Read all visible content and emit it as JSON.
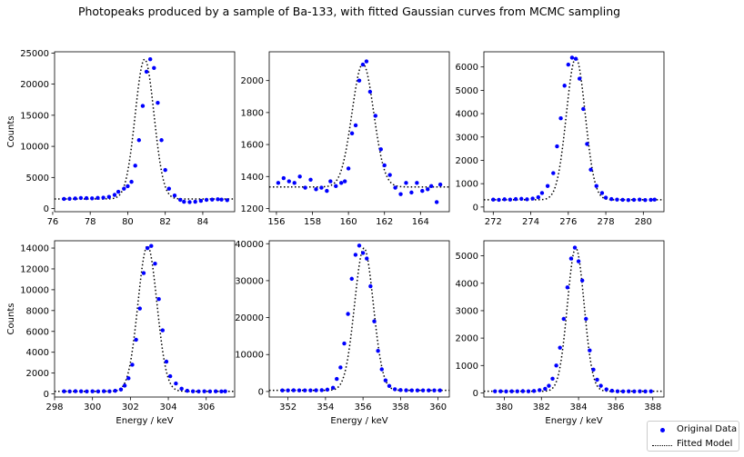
{
  "figure": {
    "title": "Photopeaks produced by a sample of Ba-133, with fitted Gaussian curves from MCMC sampling",
    "colors": {
      "data": "#0000ff",
      "model": "#000000",
      "axis": "#000000"
    },
    "legend": {
      "placement": "bottom-right",
      "entries": [
        {
          "label": "Original Data",
          "style": "blue-dots"
        },
        {
          "label": "Fitted Model",
          "style": "black-dotted-line"
        }
      ]
    }
  },
  "chart_data": [
    {
      "type": "scatter",
      "ylabel": "Counts",
      "xlabel": "",
      "xlim": [
        76.1,
        85.7
      ],
      "ylim": [
        -500,
        25200
      ],
      "xticks": [
        76,
        78,
        80,
        82,
        84
      ],
      "yticks": [
        0,
        5000,
        10000,
        15000,
        20000,
        25000
      ],
      "series": [
        {
          "name": "Original Data",
          "x": [
            76.6,
            76.9,
            77.2,
            77.5,
            77.8,
            78.1,
            78.4,
            78.7,
            79.0,
            79.3,
            79.5,
            79.8,
            80.0,
            80.2,
            80.4,
            80.6,
            80.8,
            81.0,
            81.2,
            81.4,
            81.6,
            81.8,
            82.0,
            82.2,
            82.5,
            82.8,
            83.0,
            83.3,
            83.6,
            83.9,
            84.2,
            84.5,
            84.8,
            85.0,
            85.3
          ],
          "y": [
            1550,
            1580,
            1620,
            1700,
            1680,
            1650,
            1720,
            1760,
            1880,
            2200,
            2700,
            3200,
            3600,
            4300,
            6900,
            11000,
            16500,
            22000,
            24000,
            22600,
            17000,
            11000,
            6200,
            3200,
            2100,
            1400,
            1100,
            1050,
            1100,
            1250,
            1400,
            1450,
            1500,
            1450,
            1350
          ]
        },
        {
          "name": "Fitted Model",
          "line": "dotted",
          "gaussian": {
            "amplitude": 22450,
            "center": 80.9,
            "sigma": 0.5,
            "baseline": 1550
          }
        }
      ]
    },
    {
      "type": "scatter",
      "ylabel": "",
      "xlabel": "",
      "xlim": [
        155.6,
        165.6
      ],
      "ylim": [
        1180,
        2180
      ],
      "xticks": [
        156,
        158,
        160,
        162,
        164
      ],
      "yticks": [
        1200,
        1400,
        1600,
        1800,
        2000
      ],
      "series": [
        {
          "name": "Original Data",
          "x": [
            156.1,
            156.4,
            156.7,
            157.0,
            157.3,
            157.6,
            157.9,
            158.2,
            158.5,
            158.8,
            159.0,
            159.3,
            159.6,
            159.8,
            160.0,
            160.2,
            160.4,
            160.6,
            160.8,
            161.0,
            161.2,
            161.5,
            161.8,
            162.0,
            162.3,
            162.6,
            162.9,
            163.2,
            163.5,
            163.8,
            164.1,
            164.4,
            164.6,
            164.9,
            165.1
          ],
          "y": [
            1360,
            1390,
            1370,
            1360,
            1400,
            1330,
            1380,
            1320,
            1330,
            1310,
            1370,
            1340,
            1360,
            1370,
            1450,
            1670,
            1720,
            2000,
            2100,
            2120,
            1930,
            1780,
            1570,
            1470,
            1410,
            1330,
            1290,
            1360,
            1300,
            1360,
            1310,
            1320,
            1340,
            1240,
            1350
          ]
        },
        {
          "name": "Fitted Model",
          "line": "dotted",
          "gaussian": {
            "amplitude": 770,
            "center": 160.8,
            "sigma": 0.6,
            "baseline": 1335
          }
        }
      ]
    },
    {
      "type": "scatter",
      "ylabel": "",
      "xlabel": "",
      "xlim": [
        271.5,
        281.1
      ],
      "ylim": [
        -200,
        6650
      ],
      "xticks": [
        272,
        274,
        276,
        278,
        280
      ],
      "yticks": [
        0,
        1000,
        2000,
        3000,
        4000,
        5000,
        6000
      ],
      "series": [
        {
          "name": "Original Data",
          "x": [
            272.0,
            272.3,
            272.6,
            272.9,
            273.2,
            273.5,
            273.8,
            274.1,
            274.4,
            274.6,
            274.9,
            275.2,
            275.4,
            275.6,
            275.8,
            276.0,
            276.2,
            276.4,
            276.6,
            276.8,
            277.0,
            277.2,
            277.5,
            277.8,
            278.0,
            278.3,
            278.6,
            278.9,
            279.2,
            279.5,
            279.8,
            280.1,
            280.4,
            280.6
          ],
          "y": [
            320,
            310,
            330,
            320,
            340,
            350,
            330,
            360,
            420,
            600,
            900,
            1450,
            2600,
            3800,
            5200,
            6100,
            6400,
            6350,
            5500,
            4200,
            2700,
            1600,
            900,
            600,
            400,
            340,
            320,
            310,
            300,
            310,
            320,
            300,
            310,
            320
          ]
        },
        {
          "name": "Fitted Model",
          "line": "dotted",
          "gaussian": {
            "amplitude": 6080,
            "center": 276.4,
            "sigma": 0.5,
            "baseline": 310
          }
        }
      ]
    },
    {
      "type": "scatter",
      "ylabel": "Counts",
      "xlabel": "Energy / keV",
      "xlim": [
        298.0,
        307.5
      ],
      "ylim": [
        -300,
        14700
      ],
      "xticks": [
        298,
        300,
        302,
        304,
        306
      ],
      "yticks": [
        0,
        2000,
        4000,
        6000,
        8000,
        10000,
        12000,
        14000
      ],
      "series": [
        {
          "name": "Original Data",
          "x": [
            298.5,
            298.8,
            299.1,
            299.4,
            299.7,
            300.0,
            300.3,
            300.6,
            300.9,
            301.2,
            301.5,
            301.7,
            301.9,
            302.1,
            302.3,
            302.5,
            302.7,
            302.9,
            303.1,
            303.3,
            303.5,
            303.7,
            303.9,
            304.1,
            304.4,
            304.7,
            305.0,
            305.3,
            305.6,
            305.9,
            306.2,
            306.5,
            306.8,
            307.0
          ],
          "y": [
            250,
            240,
            260,
            250,
            240,
            250,
            240,
            260,
            250,
            300,
            420,
            800,
            1500,
            2800,
            5200,
            8200,
            11600,
            14000,
            14200,
            12500,
            9100,
            6100,
            3100,
            1700,
            1000,
            500,
            300,
            250,
            240,
            250,
            240,
            250,
            240,
            250
          ]
        },
        {
          "name": "Fitted Model",
          "line": "dotted",
          "gaussian": {
            "amplitude": 13950,
            "center": 302.9,
            "sigma": 0.5,
            "baseline": 250
          }
        }
      ]
    },
    {
      "type": "scatter",
      "ylabel": "",
      "xlabel": "Energy / keV",
      "xlim": [
        351.0,
        360.6
      ],
      "ylim": [
        -1500,
        40800
      ],
      "xticks": [
        352,
        354,
        356,
        358,
        360
      ],
      "yticks": [
        0,
        10000,
        20000,
        30000,
        40000
      ],
      "series": [
        {
          "name": "Original Data",
          "x": [
            351.7,
            352.0,
            352.3,
            352.6,
            352.9,
            353.2,
            353.5,
            353.8,
            354.1,
            354.4,
            354.6,
            354.8,
            355.0,
            355.2,
            355.4,
            355.6,
            355.8,
            356.0,
            356.2,
            356.4,
            356.6,
            356.8,
            357.0,
            357.2,
            357.4,
            357.7,
            358.0,
            358.3,
            358.6,
            358.9,
            359.2,
            359.5,
            359.8,
            360.1
          ],
          "y": [
            300,
            300,
            320,
            300,
            310,
            300,
            320,
            350,
            500,
            1000,
            3400,
            6500,
            13000,
            21000,
            30500,
            37000,
            39500,
            37500,
            36000,
            28500,
            19000,
            11000,
            6000,
            3000,
            1500,
            600,
            400,
            320,
            300,
            310,
            300,
            300,
            310,
            300
          ]
        },
        {
          "name": "Fitted Model",
          "line": "dotted",
          "gaussian": {
            "amplitude": 38500,
            "center": 356.05,
            "sigma": 0.5,
            "baseline": 300
          }
        }
      ]
    },
    {
      "type": "scatter",
      "ylabel": "",
      "xlabel": "Energy / keV",
      "xlim": [
        378.9,
        388.6
      ],
      "ylim": [
        -150,
        5550
      ],
      "xticks": [
        380,
        382,
        384,
        386,
        388
      ],
      "yticks": [
        0,
        1000,
        2000,
        3000,
        4000,
        5000
      ],
      "series": [
        {
          "name": "Original Data",
          "x": [
            379.5,
            379.8,
            380.1,
            380.4,
            380.7,
            381.0,
            381.3,
            381.6,
            381.9,
            382.2,
            382.4,
            382.6,
            382.8,
            383.0,
            383.2,
            383.4,
            383.6,
            383.8,
            384.0,
            384.2,
            384.4,
            384.6,
            384.8,
            385.0,
            385.2,
            385.5,
            385.8,
            386.1,
            386.4,
            386.7,
            387.0,
            387.3,
            387.6,
            387.9
          ],
          "y": [
            60,
            60,
            55,
            60,
            60,
            65,
            60,
            70,
            100,
            150,
            260,
            520,
            1000,
            1650,
            2700,
            3850,
            4900,
            5300,
            4800,
            4100,
            2700,
            1550,
            850,
            480,
            260,
            130,
            80,
            60,
            55,
            60,
            55,
            60,
            55,
            60
          ]
        },
        {
          "name": "Fitted Model",
          "line": "dotted",
          "gaussian": {
            "amplitude": 5230,
            "center": 383.85,
            "sigma": 0.45,
            "baseline": 60
          }
        }
      ]
    }
  ]
}
